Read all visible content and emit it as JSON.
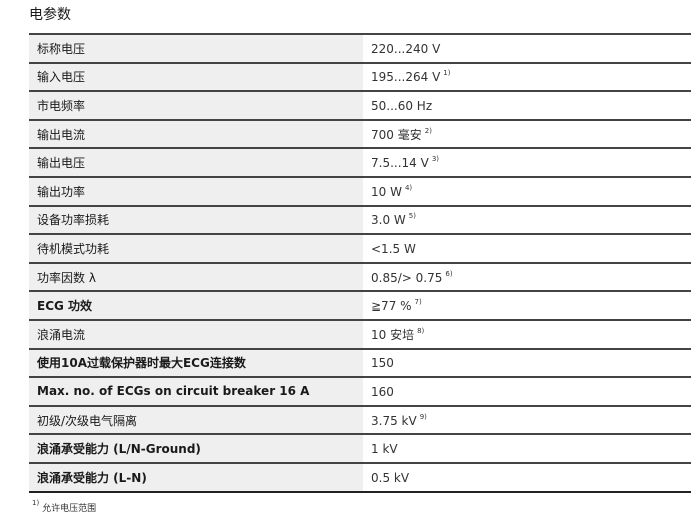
{
  "title": "电参数",
  "rows": [
    {
      "label": "标称电压",
      "value": "220...240 V",
      "note": ""
    },
    {
      "label": "输入电压",
      "value": "195...264 V",
      "note": "1)"
    },
    {
      "label": "市电频率",
      "value": "50...60 Hz",
      "note": ""
    },
    {
      "label": "输出电流",
      "value": "700 毫安",
      "note": "2)"
    },
    {
      "label": "输出电压",
      "value": "7.5...14 V",
      "note": "3)"
    },
    {
      "label": "输出功率",
      "value": "10 W",
      "note": "4)"
    },
    {
      "label": "设备功率损耗",
      "value": "3.0 W",
      "note": "5)"
    },
    {
      "label": "待机模式功耗",
      "value": "<1.5 W",
      "note": ""
    },
    {
      "label": "功率因数 λ",
      "value": "0.85/> 0.75",
      "note": "6)"
    },
    {
      "label": "ECG 功效",
      "value": "≧77 %",
      "note": "7)"
    },
    {
      "label": "浪涌电流",
      "value": "10 安培",
      "note": "8)"
    },
    {
      "label": "使用10A过载保护器时最大ECG连接数",
      "value": "150",
      "note": ""
    },
    {
      "label": "Max. no. of ECGs on circuit breaker 16 A",
      "value": "160",
      "note": ""
    },
    {
      "label": "初级/次级电气隔离",
      "value": "3.75 kV",
      "note": "9)"
    },
    {
      "label": "浪涌承受能力 (L/N-Ground)",
      "value": "1 kV",
      "note": ""
    },
    {
      "label": "浪涌承受能力 (L-N)",
      "value": "0.5 kV",
      "note": ""
    }
  ],
  "footnote": {
    "mark": "1)",
    "text": "允许电压范围"
  }
}
